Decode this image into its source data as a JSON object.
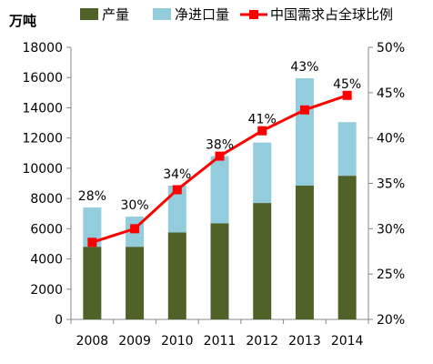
{
  "chart_data": {
    "type": "bar",
    "title": "",
    "ylabel_left": "万吨",
    "ylabel_right": "",
    "xlabel": "",
    "categories": [
      "2008",
      "2009",
      "2010",
      "2011",
      "2012",
      "2013",
      "2014"
    ],
    "series": [
      {
        "name": "产量",
        "kind": "stacked-bar",
        "axis": "left",
        "color": "#4f6228",
        "values": [
          4800,
          4800,
          5750,
          6350,
          7700,
          8850,
          9500
        ]
      },
      {
        "name": "净进口量",
        "kind": "stacked-bar",
        "axis": "left",
        "color": "#93cddd",
        "values": [
          2600,
          2000,
          3100,
          4450,
          4000,
          7100,
          3550
        ]
      },
      {
        "name": "中国需求占全球比例",
        "kind": "line",
        "axis": "right",
        "color": "#ff0000",
        "values": [
          0.285,
          0.3,
          0.343,
          0.38,
          0.408,
          0.431,
          0.447
        ],
        "labels": [
          "28%",
          "30%",
          "34%",
          "38%",
          "41%",
          "43%",
          "45%"
        ]
      }
    ],
    "ylim_left": [
      0,
      18000
    ],
    "yticks_left": [
      "0",
      "2000",
      "4000",
      "6000",
      "8000",
      "10000",
      "12000",
      "14000",
      "16000",
      "18000"
    ],
    "ylim_right": [
      0.2,
      0.5
    ],
    "yticks_right": [
      "20%",
      "25%",
      "30%",
      "35%",
      "40%",
      "45%",
      "50%"
    ],
    "grid": false,
    "legend_position": "top"
  }
}
